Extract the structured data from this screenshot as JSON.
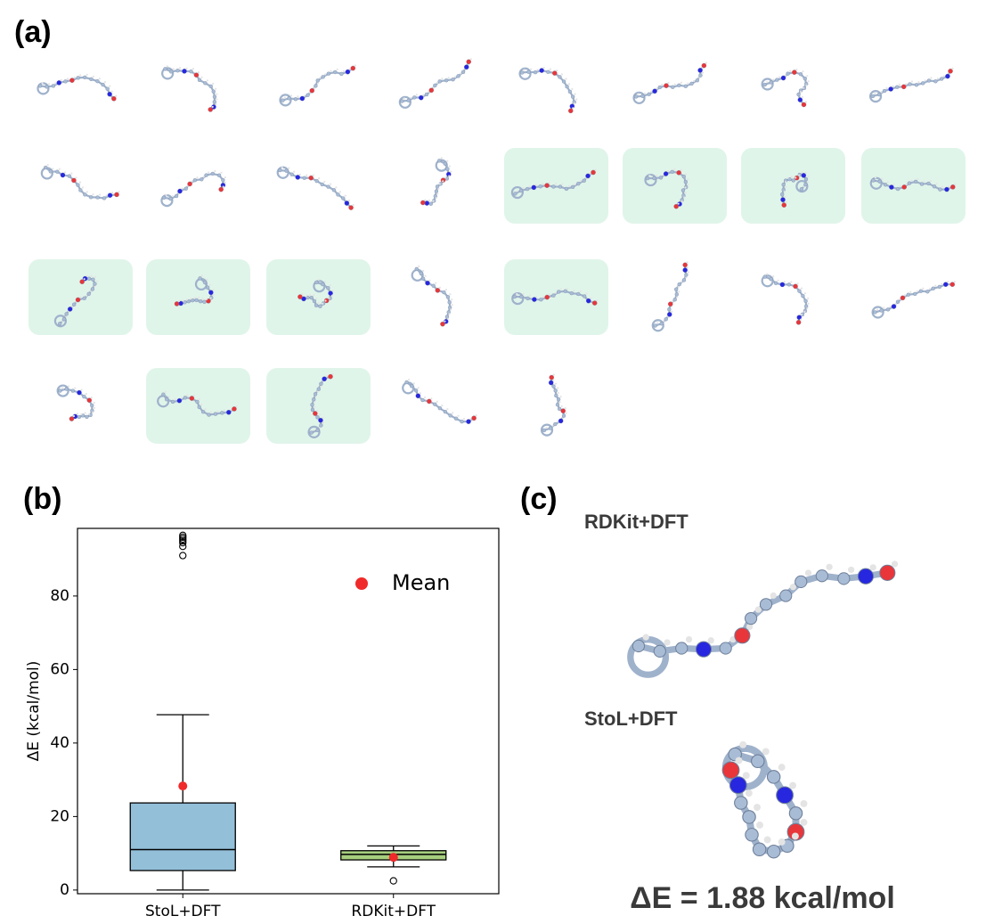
{
  "panel_labels": [
    "(a)",
    "(b)",
    "(c)"
  ],
  "chart_data": {
    "type": "box",
    "ylabel": "ΔE (kcal/mol)",
    "categories": [
      "StoL+DFT",
      "RDKit+DFT"
    ],
    "boxes": [
      {
        "color": "#93bfd8",
        "whislo": 0,
        "q1": 5.3,
        "median": 11,
        "q3": 23.7,
        "whishi": 47.7,
        "mean": 28.3,
        "fliers": [
          91,
          93.5,
          94.5,
          95,
          95.5,
          96,
          96.5
        ]
      },
      {
        "color": "#a7cf7e",
        "whislo": 6.3,
        "q1": 8.2,
        "median": 9.7,
        "q3": 10.7,
        "whishi": 12,
        "mean": 8.9,
        "fliers": [
          2.5
        ]
      }
    ],
    "mean_label": "Mean",
    "mean_color": "#f02a2a",
    "legend": "upper right",
    "ylim": [
      -1,
      98.4
    ],
    "yticks": [
      0,
      20,
      40,
      60,
      80
    ]
  },
  "panel_c": {
    "top_label": "RDKit+DFT",
    "bottom_label": "StoL+DFT",
    "energy_label": "ΔE = 1.88 kcal/mol"
  }
}
